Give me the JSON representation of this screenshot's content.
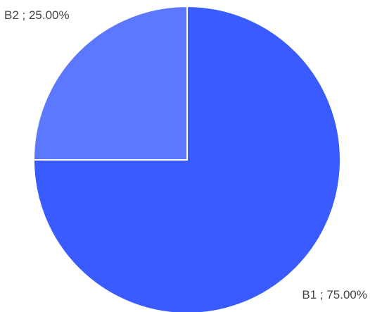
{
  "chart_data": {
    "type": "pie",
    "title": "",
    "categories": [
      "B1",
      "B2"
    ],
    "values": [
      75.0,
      25.0
    ],
    "labels": [
      "B1 ; 75.00%",
      "B2 ; 25.00%"
    ],
    "colors": [
      "#3a5bff",
      "#5b78ff"
    ],
    "legend": "none",
    "start_angle_deg": 0,
    "direction": "clockwise"
  }
}
